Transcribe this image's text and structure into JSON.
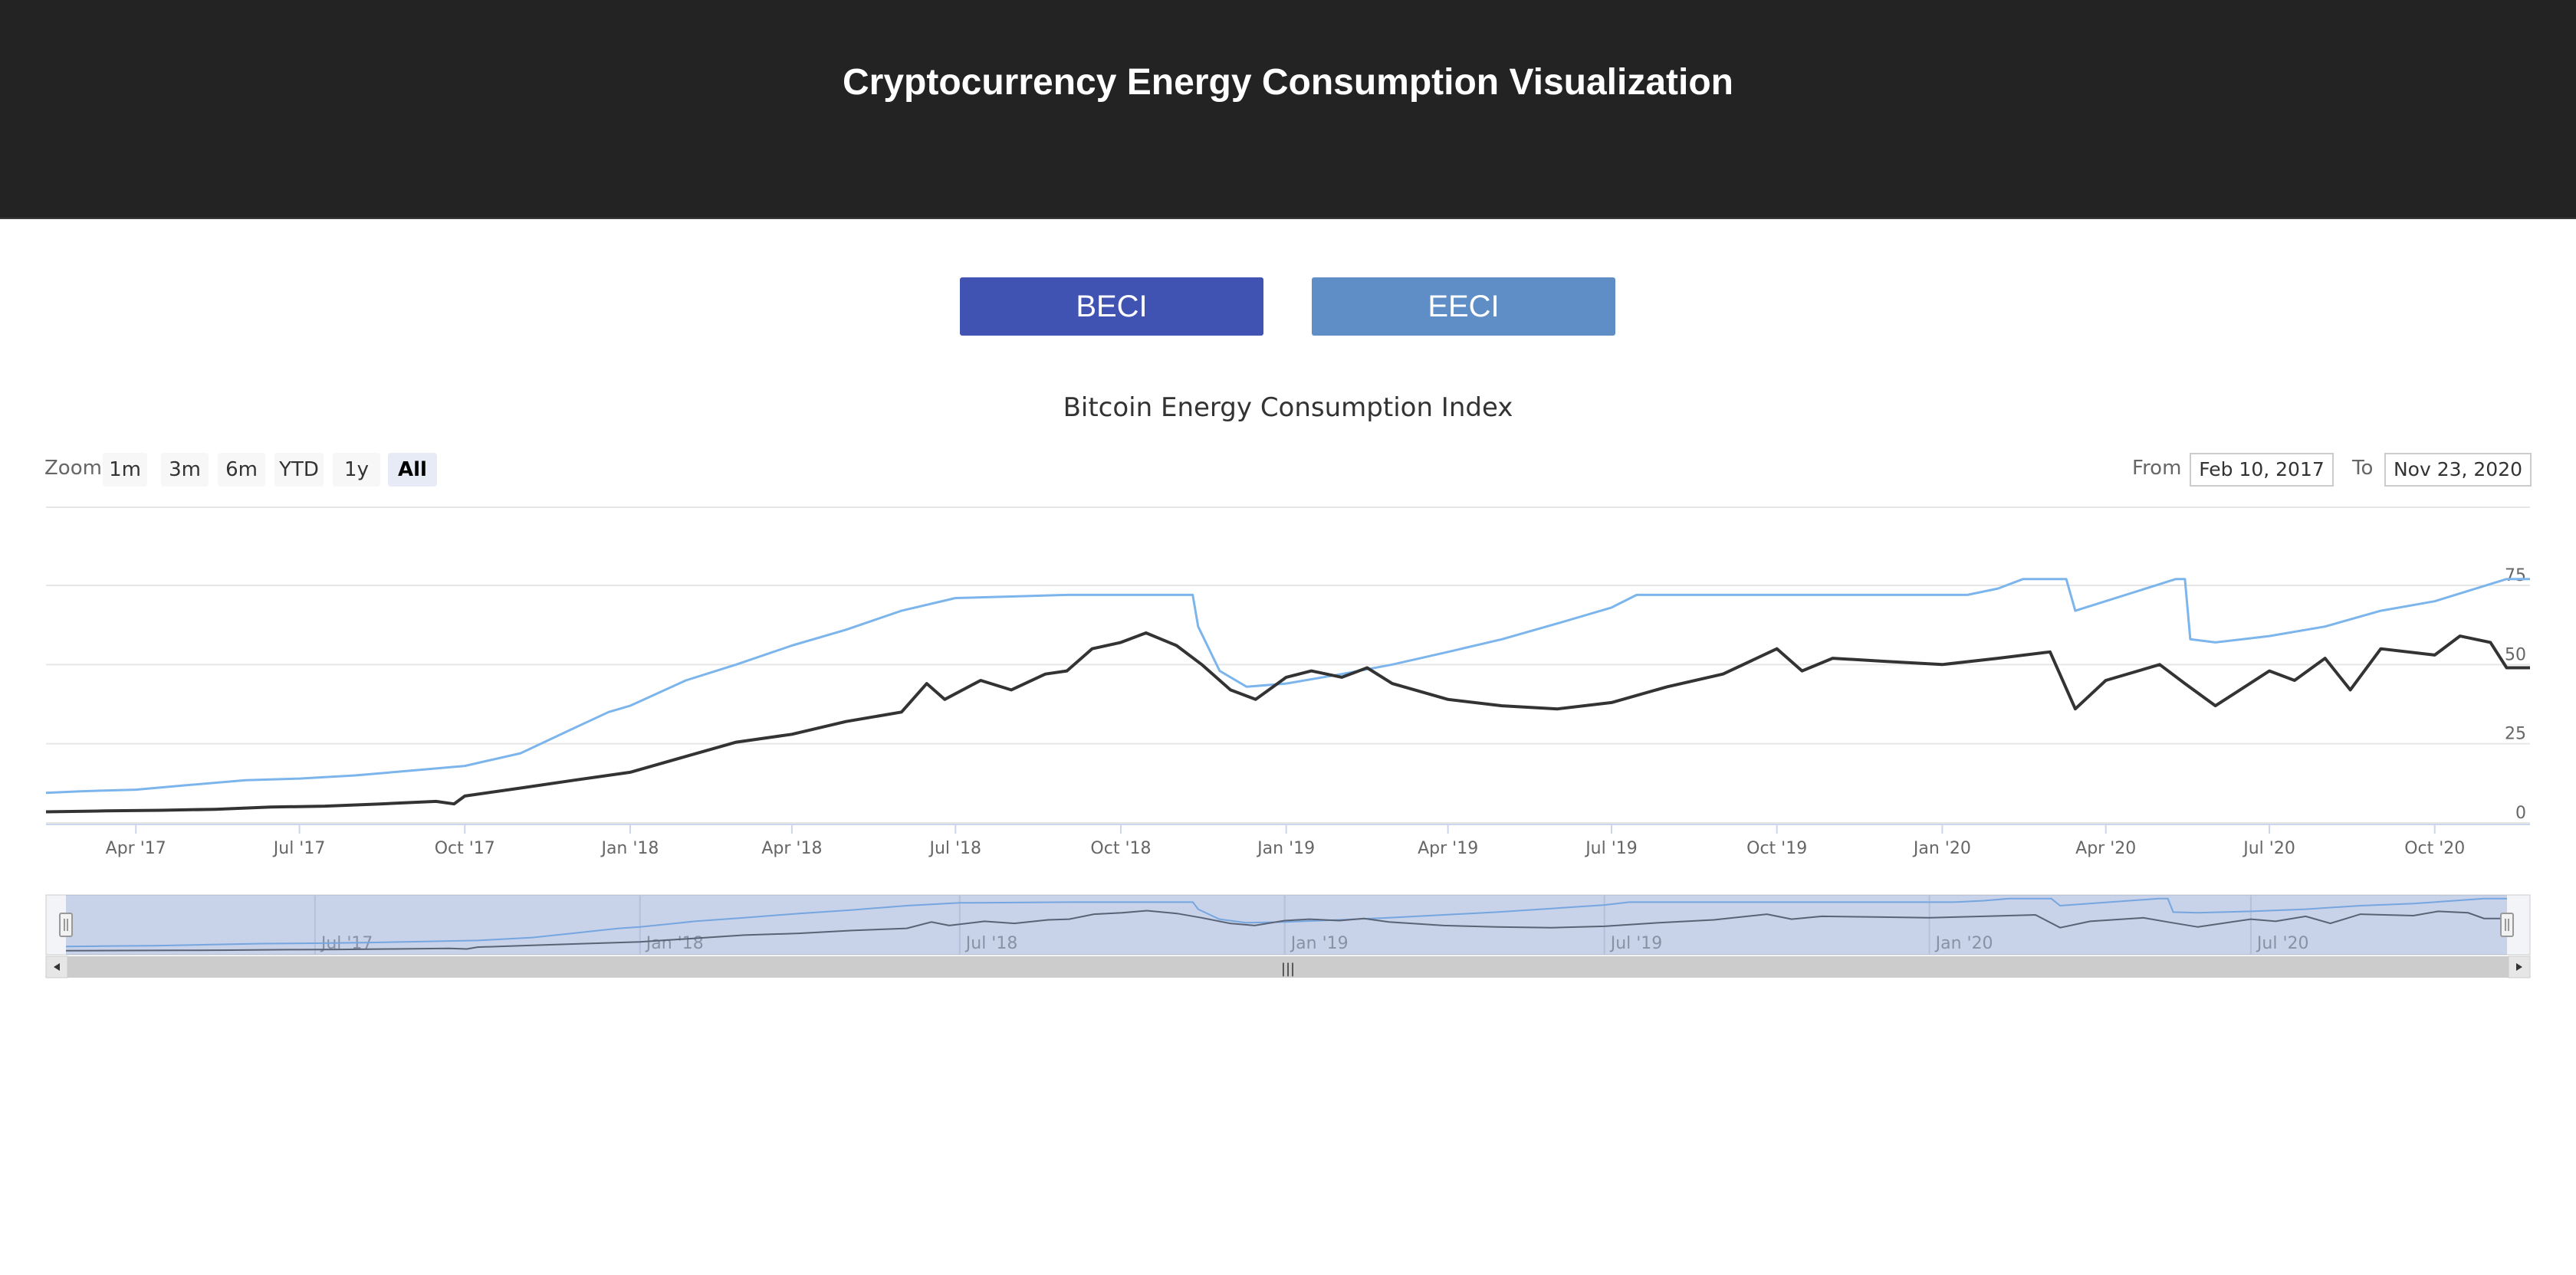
{
  "header": {
    "title": "Cryptocurrency Energy Consumption Visualization"
  },
  "tabs": [
    {
      "label": "BECI",
      "color": "#4052b2"
    },
    {
      "label": "EECI",
      "color": "#5f8ec6"
    }
  ],
  "chart": {
    "title": "Bitcoin Energy Consumption Index",
    "zoom_label": "Zoom",
    "zoom_buttons": [
      "1m",
      "3m",
      "6m",
      "YTD",
      "1y",
      "All"
    ],
    "zoom_selected": "All",
    "range_from_label": "From",
    "range_from_value": "Feb 10, 2017",
    "range_to_label": "To",
    "range_to_value": "Nov 23, 2020",
    "navigator_handle_grip": "|||"
  },
  "chart_data": {
    "type": "line",
    "title": "Bitcoin Energy Consumption Index",
    "x_type": "date",
    "x_range": [
      "2017-02-10",
      "2020-11-23"
    ],
    "x_ticks": [
      "Apr '17",
      "Jul '17",
      "Oct '17",
      "Jan '18",
      "Apr '18",
      "Jul '18",
      "Oct '18",
      "Jan '19",
      "Apr '19",
      "Jul '19",
      "Oct '19",
      "Jan '20",
      "Apr '20",
      "Jul '20",
      "Oct '20"
    ],
    "navigator_ticks": [
      "Jul '17",
      "Jan '18",
      "Jul '18",
      "Jan '19",
      "Jul '19",
      "Jan '20",
      "Jul '20"
    ],
    "y_ticks": [
      0,
      25,
      50,
      75
    ],
    "y_range": [
      0,
      80
    ],
    "y_axis_position": "right",
    "grid": true,
    "series": [
      {
        "color": "#7cb5ec",
        "points": [
          [
            "2017-02-10",
            9.5
          ],
          [
            "2017-03-01",
            10
          ],
          [
            "2017-04-01",
            10.5
          ],
          [
            "2017-05-01",
            12
          ],
          [
            "2017-06-01",
            13.5
          ],
          [
            "2017-07-01",
            14
          ],
          [
            "2017-08-01",
            15
          ],
          [
            "2017-09-01",
            16.5
          ],
          [
            "2017-10-01",
            18
          ],
          [
            "2017-11-01",
            22
          ],
          [
            "2017-12-01",
            30
          ],
          [
            "2017-12-20",
            35
          ],
          [
            "2018-01-01",
            37
          ],
          [
            "2018-02-01",
            45
          ],
          [
            "2018-03-01",
            50
          ],
          [
            "2018-04-01",
            56
          ],
          [
            "2018-05-01",
            61
          ],
          [
            "2018-06-01",
            67
          ],
          [
            "2018-07-01",
            71
          ],
          [
            "2018-08-01",
            71.5
          ],
          [
            "2018-09-01",
            72
          ],
          [
            "2018-10-01",
            72
          ],
          [
            "2018-11-10",
            72
          ],
          [
            "2018-11-13",
            62
          ],
          [
            "2018-11-25",
            48
          ],
          [
            "2018-12-10",
            43
          ],
          [
            "2019-01-01",
            44
          ],
          [
            "2019-02-01",
            47
          ],
          [
            "2019-03-01",
            50
          ],
          [
            "2019-04-01",
            54
          ],
          [
            "2019-05-01",
            58
          ],
          [
            "2019-06-01",
            63
          ],
          [
            "2019-07-01",
            68
          ],
          [
            "2019-07-15",
            72
          ],
          [
            "2019-08-01",
            72
          ],
          [
            "2019-10-01",
            72
          ],
          [
            "2019-12-01",
            72
          ],
          [
            "2020-01-15",
            72
          ],
          [
            "2020-02-01",
            74
          ],
          [
            "2020-02-15",
            77
          ],
          [
            "2020-03-10",
            77
          ],
          [
            "2020-03-15",
            67
          ],
          [
            "2020-05-10",
            77
          ],
          [
            "2020-05-15",
            77
          ],
          [
            "2020-05-18",
            58
          ],
          [
            "2020-06-01",
            57
          ],
          [
            "2020-07-01",
            59
          ],
          [
            "2020-08-01",
            62
          ],
          [
            "2020-09-01",
            67
          ],
          [
            "2020-10-01",
            70
          ],
          [
            "2020-11-10",
            77
          ],
          [
            "2020-11-23",
            77
          ]
        ]
      },
      {
        "color": "#333333",
        "points": [
          [
            "2017-02-10",
            3.5
          ],
          [
            "2017-03-15",
            3.8
          ],
          [
            "2017-04-15",
            4
          ],
          [
            "2017-05-15",
            4.3
          ],
          [
            "2017-06-15",
            5
          ],
          [
            "2017-07-15",
            5.3
          ],
          [
            "2017-08-15",
            6
          ],
          [
            "2017-09-15",
            6.8
          ],
          [
            "2017-09-25",
            6
          ],
          [
            "2017-10-01",
            8.5
          ],
          [
            "2017-11-01",
            11
          ],
          [
            "2017-12-01",
            13.5
          ],
          [
            "2018-01-01",
            16
          ],
          [
            "2018-02-01",
            21
          ],
          [
            "2018-03-01",
            25.5
          ],
          [
            "2018-04-01",
            28
          ],
          [
            "2018-05-01",
            32
          ],
          [
            "2018-06-01",
            35
          ],
          [
            "2018-06-15",
            44
          ],
          [
            "2018-06-25",
            39
          ],
          [
            "2018-07-15",
            45
          ],
          [
            "2018-08-01",
            42
          ],
          [
            "2018-08-20",
            47
          ],
          [
            "2018-09-01",
            48
          ],
          [
            "2018-09-15",
            55
          ],
          [
            "2018-10-01",
            57
          ],
          [
            "2018-10-15",
            60
          ],
          [
            "2018-11-01",
            56
          ],
          [
            "2018-11-15",
            50
          ],
          [
            "2018-12-01",
            42
          ],
          [
            "2018-12-15",
            39
          ],
          [
            "2019-01-01",
            46
          ],
          [
            "2019-01-15",
            48
          ],
          [
            "2019-02-01",
            46
          ],
          [
            "2019-02-15",
            49
          ],
          [
            "2019-03-01",
            44
          ],
          [
            "2019-04-01",
            39
          ],
          [
            "2019-05-01",
            37
          ],
          [
            "2019-06-01",
            36
          ],
          [
            "2019-07-01",
            38
          ],
          [
            "2019-08-01",
            43
          ],
          [
            "2019-09-01",
            47
          ],
          [
            "2019-10-01",
            55
          ],
          [
            "2019-10-15",
            48
          ],
          [
            "2019-11-01",
            52
          ],
          [
            "2019-12-01",
            51
          ],
          [
            "2020-01-01",
            50
          ],
          [
            "2020-02-01",
            52
          ],
          [
            "2020-03-01",
            54
          ],
          [
            "2020-03-15",
            36
          ],
          [
            "2020-04-01",
            45
          ],
          [
            "2020-05-01",
            50
          ],
          [
            "2020-05-15",
            44
          ],
          [
            "2020-06-01",
            37
          ],
          [
            "2020-07-01",
            48
          ],
          [
            "2020-07-15",
            45
          ],
          [
            "2020-08-01",
            52
          ],
          [
            "2020-08-15",
            42
          ],
          [
            "2020-09-01",
            55
          ],
          [
            "2020-10-01",
            53
          ],
          [
            "2020-10-15",
            59
          ],
          [
            "2020-11-01",
            57
          ],
          [
            "2020-11-10",
            49
          ],
          [
            "2020-11-23",
            49
          ]
        ]
      }
    ]
  }
}
